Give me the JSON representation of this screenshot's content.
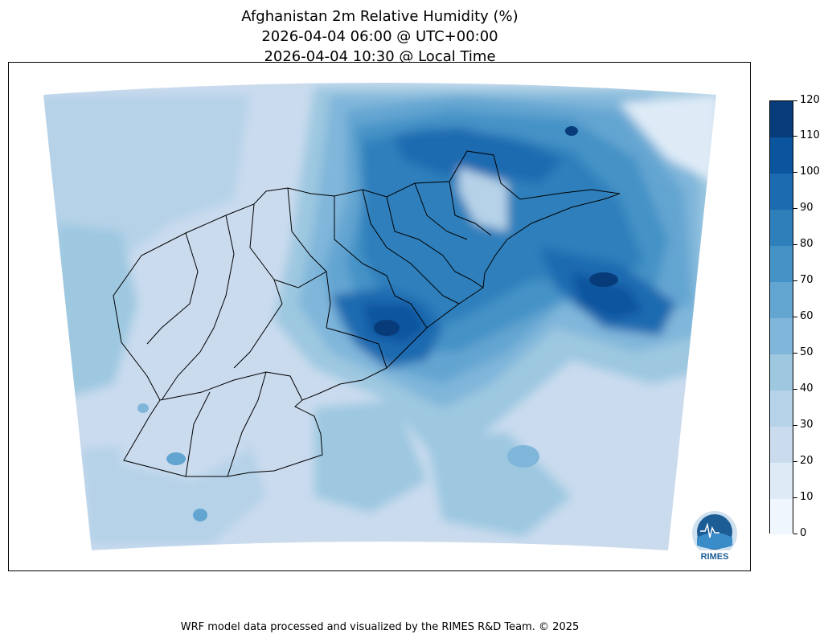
{
  "title": {
    "line1": "Afghanistan 2m Relative Humidity (%)",
    "line2": "2026-04-04 06:00 @ UTC+00:00",
    "line3": "2026-04-04 10:30 @ Local Time"
  },
  "colorbar": {
    "ticks": [
      "0",
      "10",
      "20",
      "30",
      "40",
      "50",
      "60",
      "70",
      "80",
      "90",
      "100",
      "110",
      "120"
    ],
    "colors": [
      "#f0f6fd",
      "#deebf7",
      "#cadbee",
      "#b5d2e8",
      "#9dc8e0",
      "#80b6da",
      "#63a5d1",
      "#4592c6",
      "#2f7fbb",
      "#1c6ab0",
      "#0b559f",
      "#083b7a"
    ]
  },
  "logo": {
    "text": "RIMES"
  },
  "footer": "WRF model data processed and visualized by the RIMES R&D Team. © 2025"
}
